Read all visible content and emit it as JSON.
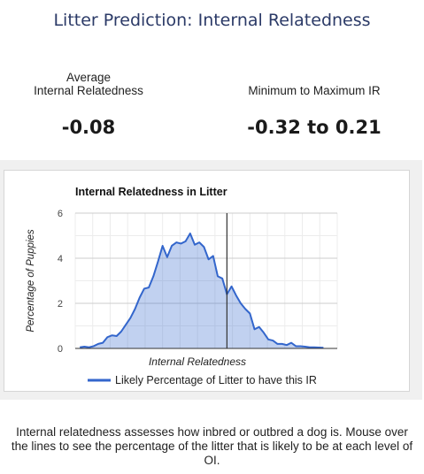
{
  "header": {
    "title": "Litter Prediction: Internal Relatedness"
  },
  "stats": {
    "average": {
      "label_line1": "Average",
      "label_line2": "Internal Relatedness",
      "value": "-0.08"
    },
    "range": {
      "label": "Minimum to Maximum IR",
      "value": "-0.32 to 0.21"
    }
  },
  "chart_data": {
    "type": "area",
    "title": "Internal Relatedness in Litter",
    "xlabel": "Internal Relatedness",
    "ylabel": "Percentage of Puppies",
    "ylim": [
      0,
      6
    ],
    "xlim": [
      -0.33,
      0.24
    ],
    "yticks": [
      "0",
      "2",
      "4",
      "6"
    ],
    "grid": true,
    "legend": "bottom",
    "series": [
      {
        "name": "Likely Percentage of Litter to have this IR",
        "color": "#3366cc",
        "x": [
          -0.32,
          -0.31,
          -0.3,
          -0.29,
          -0.28,
          -0.27,
          -0.26,
          -0.25,
          -0.24,
          -0.23,
          -0.22,
          -0.21,
          -0.2,
          -0.19,
          -0.18,
          -0.17,
          -0.16,
          -0.15,
          -0.14,
          -0.13,
          -0.12,
          -0.11,
          -0.1,
          -0.09,
          -0.08,
          -0.07,
          -0.06,
          -0.05,
          -0.04,
          -0.03,
          -0.02,
          -0.01,
          0.0,
          0.01,
          0.02,
          0.03,
          0.04,
          0.05,
          0.06,
          0.07,
          0.08,
          0.09,
          0.1,
          0.11,
          0.12,
          0.13,
          0.14,
          0.15,
          0.16,
          0.17,
          0.18,
          0.19,
          0.2,
          0.21
        ],
        "values": [
          0.05,
          0.08,
          0.05,
          0.1,
          0.2,
          0.25,
          0.5,
          0.58,
          0.55,
          0.75,
          1.05,
          1.35,
          1.75,
          2.25,
          2.65,
          2.7,
          3.2,
          3.85,
          4.55,
          4.05,
          4.55,
          4.7,
          4.65,
          4.75,
          5.1,
          4.6,
          4.7,
          4.5,
          3.95,
          4.1,
          3.2,
          3.1,
          2.4,
          2.75,
          2.35,
          2.0,
          1.75,
          1.55,
          0.85,
          0.95,
          0.7,
          0.4,
          0.35,
          0.2,
          0.2,
          0.15,
          0.25,
          0.1,
          0.1,
          0.08,
          0.05,
          0.05,
          0.04,
          0.03
        ]
      }
    ],
    "marker": {
      "x": 0.0
    }
  },
  "footer": {
    "text": "Internal relatedness assesses how inbred or outbred a dog is. Mouse over the lines to see the percentage of the litter that is likely to be at each level of OI."
  }
}
